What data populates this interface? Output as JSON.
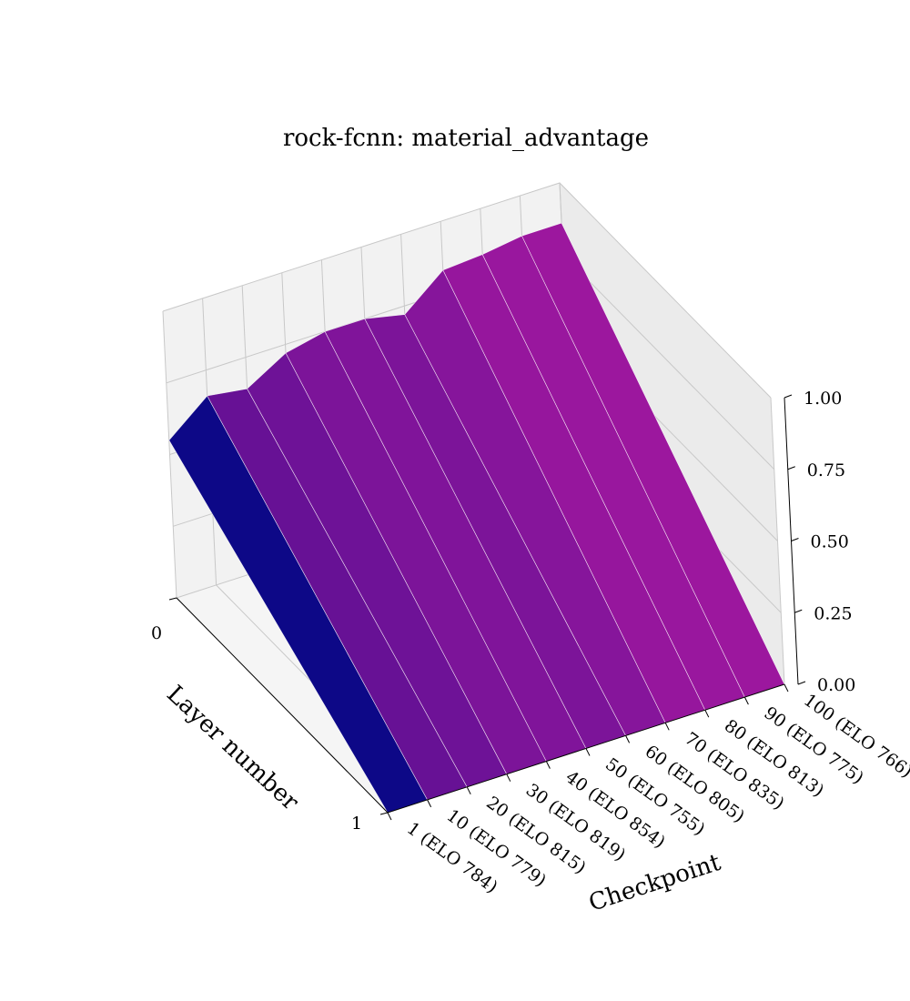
{
  "chart_data": {
    "type": "surface",
    "title": "rock-fcnn: material_advantage",
    "xlabel": "Checkpoint",
    "ylabel": "Layer number",
    "zlabel": "",
    "x_categories": [
      "1 (ELO 784)",
      "10 (ELO 779)",
      "20 (ELO 815)",
      "30 (ELO 819)",
      "40 (ELO 854)",
      "50 (ELO 755)",
      "60 (ELO 805)",
      "70 (ELO 835)",
      "80 (ELO 813)",
      "90 (ELO 775)",
      "100 (ELO 766)"
    ],
    "y_ticks": [
      "0",
      "1"
    ],
    "z_ticks": [
      "0.00",
      "0.25",
      "0.50",
      "0.75",
      "1.00"
    ],
    "zlim": [
      0,
      1
    ],
    "values": [
      0.55,
      0.66,
      0.64,
      0.72,
      0.75,
      0.75,
      0.72,
      0.83,
      0.84,
      0.86,
      0.86
    ],
    "colormap": "plasma",
    "colors": {
      "low": "#0d0887",
      "high": "#9c179e",
      "pane_back": "#f2f2f2",
      "pane_side": "#ebebeb",
      "pane_floor": "#f5f5f5",
      "grid": "#c8c8c8"
    }
  }
}
